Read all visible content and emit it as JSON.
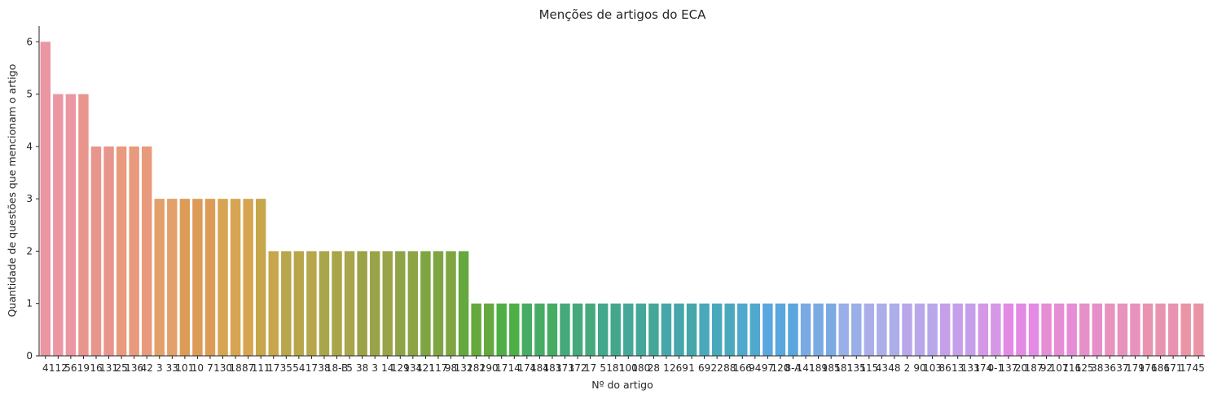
{
  "chart_data": {
    "type": "bar",
    "title": "Menções de artigos do ECA",
    "xlabel": "Nº do artigo",
    "ylabel": "Quantidade de questões que mencionam o artigo",
    "ylim": [
      0,
      6.3
    ],
    "yticks": [
      "0",
      "1",
      "2",
      "3",
      "4",
      "5",
      "6"
    ],
    "grid": false,
    "categories": [
      "4",
      "112",
      "56",
      "19",
      "16",
      "131",
      "25",
      "136",
      "42",
      "3",
      "33",
      "101",
      "10",
      "7",
      "130",
      "18",
      "87",
      "111",
      "17",
      "35",
      "54",
      "17",
      "38",
      "18-B",
      "5",
      "38",
      "3",
      "14",
      "129",
      "134",
      "121",
      "117",
      "98",
      "132",
      "182",
      "190",
      "17",
      "14",
      "174",
      "184",
      "183",
      "173",
      "172",
      "17",
      "5",
      "181",
      "100",
      "180",
      "28",
      "1",
      "269",
      "1",
      "69",
      "22",
      "88",
      "166",
      "94",
      "97",
      "120",
      "8-A",
      "141",
      "189",
      "185",
      "181",
      "135",
      "115",
      "43",
      "48",
      "2",
      "90",
      "103",
      "86",
      "13",
      "133",
      "174",
      "0-1",
      "137",
      "20",
      "187",
      "92",
      "107",
      "116",
      "125",
      "38",
      "36",
      "37",
      "179",
      "176",
      "186",
      "171",
      "17",
      "45"
    ],
    "values": [
      6,
      5,
      5,
      5,
      4,
      4,
      4,
      4,
      4,
      3,
      3,
      3,
      3,
      3,
      3,
      3,
      3,
      3,
      2,
      2,
      2,
      2,
      2,
      2,
      2,
      2,
      2,
      2,
      2,
      2,
      2,
      2,
      2,
      2,
      1,
      1,
      1,
      1,
      1,
      1,
      1,
      1,
      1,
      1,
      1,
      1,
      1,
      1,
      1,
      1,
      1,
      1,
      1,
      1,
      1,
      1,
      1,
      1,
      1,
      1,
      1,
      1,
      1,
      1,
      1,
      1,
      1,
      1,
      1,
      1,
      1,
      1,
      1,
      1,
      1,
      1,
      1,
      1,
      1,
      1,
      1,
      1,
      1,
      1,
      1,
      1,
      1,
      1,
      1,
      1,
      1,
      1
    ],
    "colors": [
      "#ea96a3",
      "#e8958c",
      "#e99a7d",
      "#e2a16a",
      "#dc9c58",
      "#d7a551",
      "#c7a64c",
      "#b7a64a",
      "#a8a54a",
      "#9ba348",
      "#8ea346",
      "#7ea541",
      "#65a83d",
      "#4daf45",
      "#46ac64",
      "#45a97c",
      "#43a78c",
      "#44a79a",
      "#46a7ab",
      "#49a8bc",
      "#50a8cf",
      "#5aa6de",
      "#7aaae4",
      "#9aaee8",
      "#abaee8",
      "#b8a8ea",
      "#c59fe9",
      "#d598e7",
      "#e38ae5",
      "#e68dd6",
      "#e690c9",
      "#e793bd",
      "#e894b1",
      "#e995a5"
    ]
  }
}
